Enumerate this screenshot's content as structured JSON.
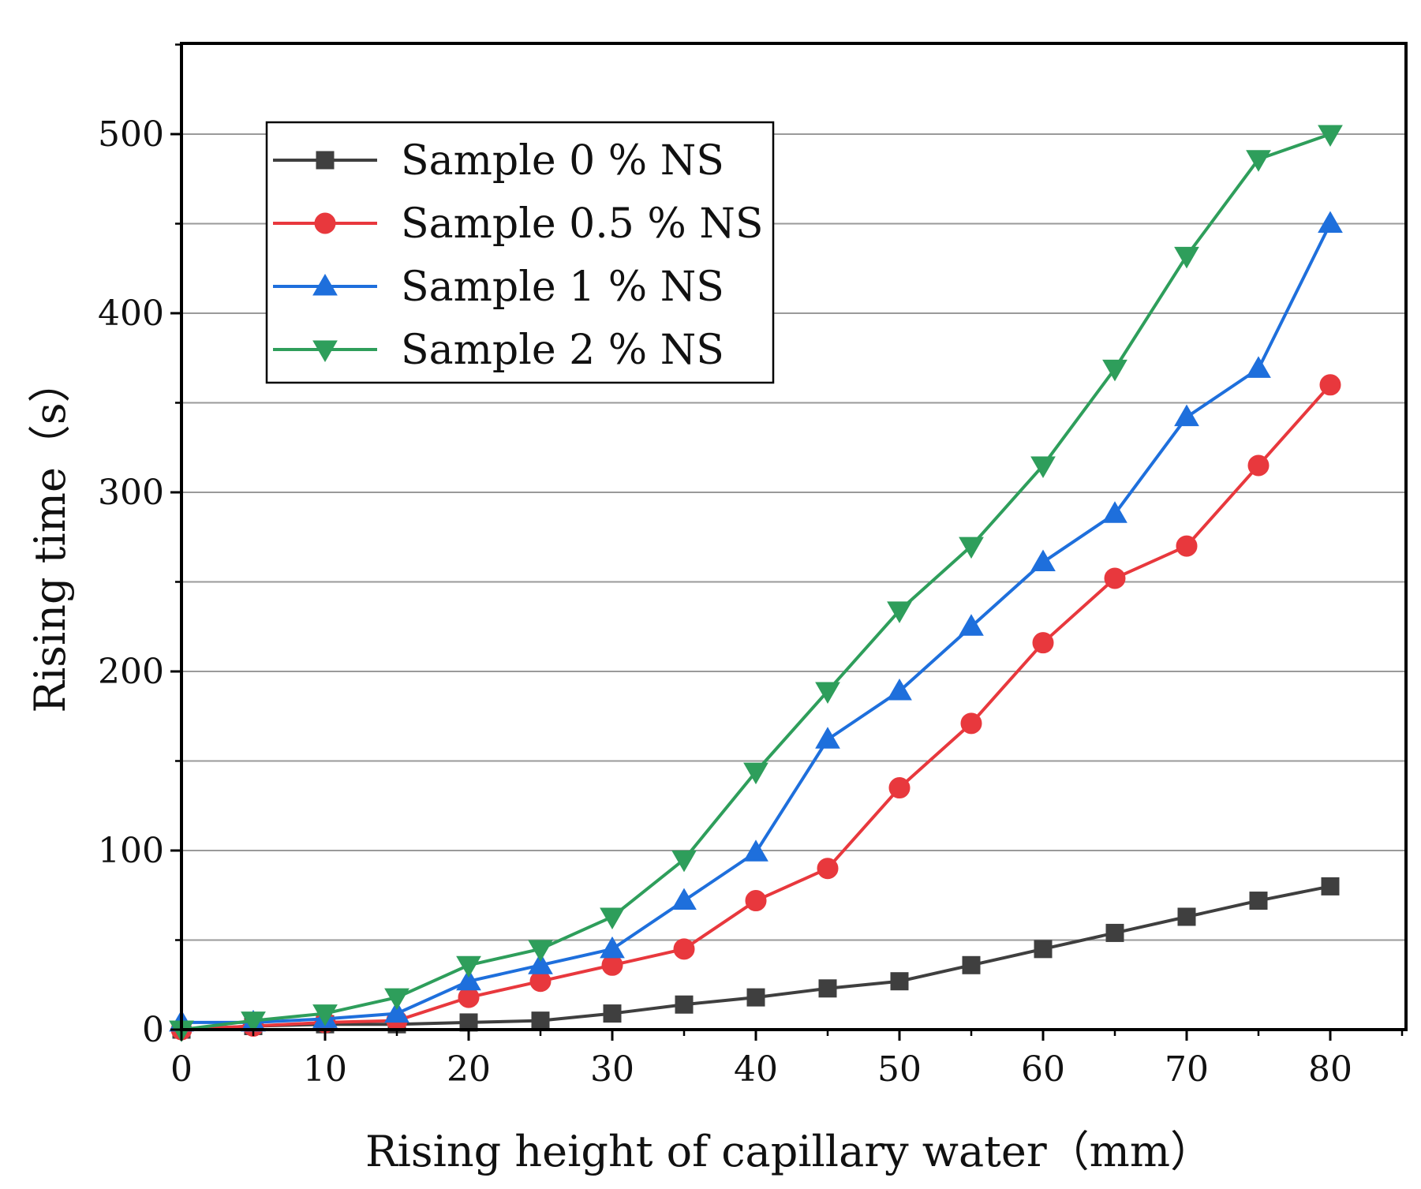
{
  "chart_data": {
    "type": "line",
    "title": "",
    "xlabel": "Rising height of capillary water（mm）",
    "ylabel": "Rising time（s）",
    "xlim": [
      0,
      85
    ],
    "ylim": [
      0,
      550
    ],
    "xticks": [
      0,
      10,
      20,
      30,
      40,
      50,
      60,
      70,
      80
    ],
    "yticks": [
      0,
      100,
      200,
      300,
      400,
      500
    ],
    "ygrid": [
      50,
      100,
      150,
      200,
      250,
      300,
      350,
      400,
      450,
      500
    ],
    "grid": "horizontal",
    "legend_position": "top-left",
    "x": [
      0,
      5,
      10,
      15,
      20,
      25,
      30,
      35,
      40,
      45,
      50,
      55,
      60,
      65,
      70,
      75,
      80
    ],
    "series": [
      {
        "name": "Sample 0 % NS",
        "marker": "square",
        "color": "#3f3f3f",
        "values": [
          0,
          2,
          3,
          3,
          4,
          5,
          9,
          14,
          18,
          23,
          27,
          36,
          45,
          54,
          63,
          72,
          80
        ]
      },
      {
        "name": "Sample 0.5 % NS",
        "marker": "circle",
        "color": "#e8383d",
        "values": [
          0,
          2,
          4,
          5,
          18,
          27,
          36,
          45,
          72,
          90,
          135,
          171,
          216,
          252,
          270,
          315,
          360
        ]
      },
      {
        "name": "Sample 1 % NS",
        "marker": "triangle-up",
        "color": "#1e6fdc",
        "values": [
          4,
          4,
          6,
          9,
          27,
          36,
          45,
          72,
          99,
          162,
          189,
          225,
          261,
          288,
          342,
          369,
          450
        ]
      },
      {
        "name": "Sample 2 % NS",
        "marker": "triangle-down",
        "color": "#2e9e5b",
        "values": [
          0,
          5,
          9,
          18,
          36,
          45,
          63,
          95,
          144,
          189,
          234,
          270,
          315,
          369,
          432,
          486,
          500
        ]
      }
    ]
  }
}
